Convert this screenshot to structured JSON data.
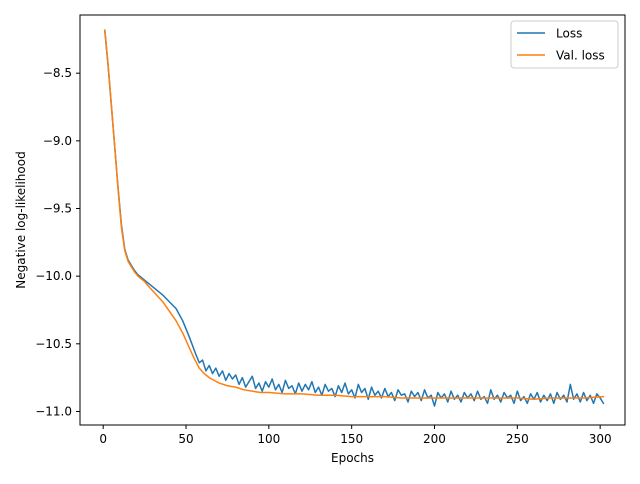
{
  "chart_data": {
    "type": "line",
    "title": "",
    "xlabel": "Epochs",
    "ylabel": "Negative log-likelihood",
    "xlim": [
      -14,
      315
    ],
    "ylim": [
      -11.1,
      -8.07
    ],
    "xticks": [
      0,
      50,
      100,
      150,
      200,
      250,
      300
    ],
    "yticks": [
      -8.5,
      -9.0,
      -9.5,
      -10.0,
      -10.5,
      -11.0
    ],
    "xtick_labels": [
      "0",
      "50",
      "100",
      "150",
      "200",
      "250",
      "300"
    ],
    "ytick_labels": [
      "−8.5",
      "−9.0",
      "−9.5",
      "−10.0",
      "−10.5",
      "−11.0"
    ],
    "grid": false,
    "legend_position": "top-right",
    "series": [
      {
        "name": "Loss",
        "color": "#1f77b4",
        "x": [
          1,
          3,
          5,
          7,
          9,
          11,
          13,
          15,
          17,
          19,
          21,
          23,
          25,
          27,
          30,
          33,
          36,
          40,
          44,
          48,
          52,
          56,
          58,
          60,
          62,
          64,
          66,
          68,
          70,
          72,
          74,
          76,
          78,
          80,
          82,
          84,
          86,
          88,
          90,
          92,
          94,
          96,
          98,
          100,
          102,
          104,
          106,
          108,
          110,
          112,
          114,
          116,
          118,
          120,
          122,
          124,
          126,
          128,
          130,
          132,
          134,
          136,
          138,
          140,
          142,
          144,
          146,
          148,
          150,
          152,
          154,
          156,
          158,
          160,
          162,
          164,
          166,
          168,
          170,
          172,
          174,
          176,
          178,
          180,
          182,
          184,
          186,
          188,
          190,
          192,
          194,
          196,
          198,
          200,
          202,
          204,
          206,
          208,
          210,
          212,
          214,
          216,
          218,
          220,
          222,
          224,
          226,
          228,
          230,
          232,
          234,
          236,
          238,
          240,
          242,
          244,
          246,
          248,
          250,
          252,
          254,
          256,
          258,
          260,
          262,
          264,
          266,
          268,
          270,
          272,
          274,
          276,
          278,
          280,
          282,
          284,
          286,
          288,
          290,
          292,
          294,
          296,
          298,
          300,
          302
        ],
        "y": [
          -8.19,
          -8.45,
          -8.75,
          -9.05,
          -9.35,
          -9.62,
          -9.8,
          -9.88,
          -9.92,
          -9.96,
          -9.99,
          -10.01,
          -10.03,
          -10.05,
          -10.08,
          -10.11,
          -10.14,
          -10.19,
          -10.24,
          -10.33,
          -10.45,
          -10.58,
          -10.64,
          -10.62,
          -10.7,
          -10.66,
          -10.72,
          -10.68,
          -10.74,
          -10.7,
          -10.77,
          -10.72,
          -10.76,
          -10.73,
          -10.8,
          -10.75,
          -10.82,
          -10.78,
          -10.74,
          -10.83,
          -10.79,
          -10.85,
          -10.78,
          -10.82,
          -10.76,
          -10.84,
          -10.8,
          -10.86,
          -10.77,
          -10.83,
          -10.81,
          -10.87,
          -10.79,
          -10.85,
          -10.8,
          -10.84,
          -10.78,
          -10.86,
          -10.82,
          -10.88,
          -10.8,
          -10.85,
          -10.83,
          -10.89,
          -10.81,
          -10.86,
          -10.79,
          -10.87,
          -10.84,
          -10.9,
          -10.8,
          -10.86,
          -10.83,
          -10.91,
          -10.82,
          -10.88,
          -10.85,
          -10.9,
          -10.83,
          -10.89,
          -10.86,
          -10.92,
          -10.84,
          -10.88,
          -10.87,
          -10.93,
          -10.85,
          -10.89,
          -10.86,
          -10.92,
          -10.84,
          -10.9,
          -10.88,
          -10.96,
          -10.86,
          -10.9,
          -10.87,
          -10.93,
          -10.85,
          -10.91,
          -10.88,
          -10.93,
          -10.86,
          -10.9,
          -10.87,
          -10.92,
          -10.85,
          -10.91,
          -10.89,
          -10.94,
          -10.84,
          -10.91,
          -10.88,
          -10.93,
          -10.86,
          -10.9,
          -10.88,
          -10.94,
          -10.85,
          -10.92,
          -10.89,
          -10.94,
          -10.87,
          -10.91,
          -10.86,
          -10.93,
          -10.88,
          -10.92,
          -10.87,
          -10.94,
          -10.86,
          -10.91,
          -10.88,
          -10.93,
          -10.8,
          -10.91,
          -10.87,
          -10.93,
          -10.86,
          -10.92,
          -10.88,
          -10.94,
          -10.87,
          -10.9,
          -10.94
        ]
      },
      {
        "name": "Val. loss",
        "color": "#ff7f0e",
        "x": [
          1,
          3,
          5,
          7,
          9,
          11,
          13,
          15,
          17,
          19,
          21,
          23,
          25,
          27,
          30,
          33,
          36,
          40,
          44,
          48,
          52,
          55,
          58,
          61,
          64,
          67,
          70,
          75,
          80,
          85,
          90,
          95,
          100,
          110,
          120,
          130,
          140,
          150,
          160,
          170,
          180,
          190,
          200,
          210,
          220,
          230,
          240,
          250,
          260,
          270,
          280,
          290,
          302
        ],
        "y": [
          -8.18,
          -8.44,
          -8.74,
          -9.05,
          -9.36,
          -9.64,
          -9.81,
          -9.89,
          -9.93,
          -9.97,
          -10.0,
          -10.02,
          -10.04,
          -10.07,
          -10.11,
          -10.15,
          -10.19,
          -10.26,
          -10.33,
          -10.42,
          -10.53,
          -10.61,
          -10.68,
          -10.72,
          -10.75,
          -10.77,
          -10.79,
          -10.81,
          -10.82,
          -10.84,
          -10.85,
          -10.86,
          -10.86,
          -10.87,
          -10.87,
          -10.88,
          -10.88,
          -10.89,
          -10.89,
          -10.89,
          -10.9,
          -10.9,
          -10.9,
          -10.9,
          -10.9,
          -10.9,
          -10.9,
          -10.9,
          -10.91,
          -10.9,
          -10.9,
          -10.9,
          -10.89
        ]
      }
    ]
  }
}
